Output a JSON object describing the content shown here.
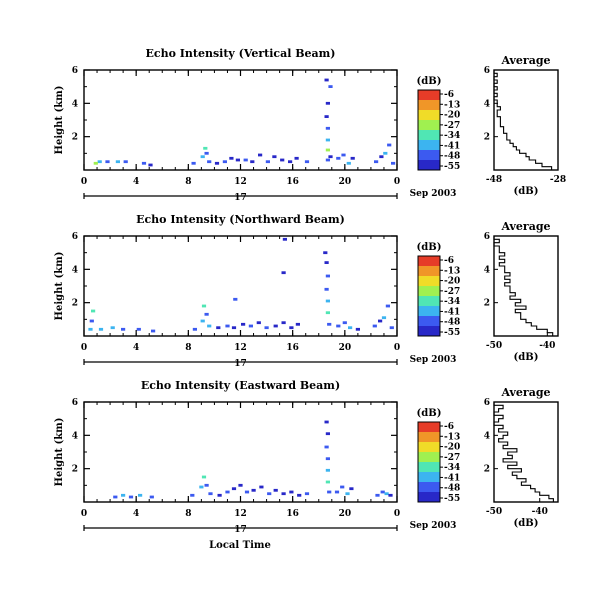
{
  "figure": {
    "x_axis_label": "Local Time",
    "date_label": "Sep 2003",
    "day_label": "17",
    "colorbar_unit": "(dB)",
    "colorbar_ticks": [
      "-6",
      "-13",
      "-20",
      "-27",
      "-34",
      "-41",
      "-48",
      "-55"
    ],
    "colors": [
      "#2828c8",
      "#3c5af0",
      "#3cb4f0",
      "#50e6b4",
      "#a0f050",
      "#f0dc28",
      "#f09628",
      "#e63c28"
    ]
  },
  "chart_data": [
    {
      "type": "heatmap",
      "title": "Echo Intensity (Vertical Beam)",
      "xlabel": "Local Time",
      "ylabel": "Height (km)",
      "xlim": [
        0,
        24
      ],
      "ylim": [
        0,
        6
      ],
      "xticks": [
        "0",
        "4",
        "8",
        "12",
        "16",
        "20",
        "0"
      ],
      "yticks": [
        "2",
        "4",
        "6"
      ],
      "colorbar": {
        "label": "(dB)",
        "range": [
          -55,
          -6
        ]
      },
      "cells": [
        [
          1.2,
          0.5,
          -42
        ],
        [
          1.8,
          0.5,
          -45
        ],
        [
          2.6,
          0.5,
          -38
        ],
        [
          3.2,
          0.5,
          -48
        ],
        [
          4.6,
          0.4,
          -46
        ],
        [
          5.1,
          0.3,
          -50
        ],
        [
          0.9,
          0.4,
          -30
        ],
        [
          8.4,
          0.4,
          -44
        ],
        [
          9.1,
          0.8,
          -40
        ],
        [
          9.3,
          1.3,
          -35
        ],
        [
          9.4,
          1.0,
          -48
        ],
        [
          9.6,
          0.5,
          -45
        ],
        [
          10.2,
          0.4,
          -50
        ],
        [
          10.8,
          0.5,
          -48
        ],
        [
          11.3,
          0.7,
          -50
        ],
        [
          11.8,
          0.6,
          -52
        ],
        [
          12.4,
          0.6,
          -47
        ],
        [
          12.9,
          0.5,
          -50
        ],
        [
          13.5,
          0.9,
          -52
        ],
        [
          14.1,
          0.5,
          -48
        ],
        [
          14.6,
          0.8,
          -50
        ],
        [
          15.2,
          0.6,
          -53
        ],
        [
          15.8,
          0.5,
          -50
        ],
        [
          16.3,
          0.7,
          -51
        ],
        [
          17.1,
          0.5,
          -44
        ],
        [
          18.6,
          5.4,
          -50
        ],
        [
          18.9,
          5.0,
          -48
        ],
        [
          18.7,
          4.0,
          -52
        ],
        [
          18.6,
          3.2,
          -50
        ],
        [
          18.7,
          2.5,
          -46
        ],
        [
          18.7,
          1.8,
          -40
        ],
        [
          18.7,
          1.2,
          -30
        ],
        [
          18.7,
          0.6,
          -45
        ],
        [
          18.9,
          0.8,
          -50
        ],
        [
          19.5,
          0.7,
          -48
        ],
        [
          19.9,
          0.9,
          -46
        ],
        [
          20.3,
          0.4,
          -42
        ],
        [
          20.6,
          0.7,
          -50
        ],
        [
          22.4,
          0.5,
          -45
        ],
        [
          22.8,
          0.8,
          -50
        ],
        [
          23.1,
          1.0,
          -42
        ],
        [
          23.4,
          1.5,
          -48
        ],
        [
          23.7,
          0.4,
          -44
        ]
      ],
      "average": {
        "xlim": [
          -48,
          -28
        ],
        "xticks": [
          "-48",
          "-28"
        ],
        "ylim": [
          0,
          6
        ],
        "yticks": [
          "2",
          "4",
          "6"
        ],
        "heights": [
          0.1,
          0.3,
          0.5,
          0.7,
          0.9,
          1.1,
          1.3,
          1.5,
          1.7,
          1.9,
          2.1,
          2.3,
          2.5,
          2.7,
          2.9,
          3.1,
          3.3,
          3.5,
          3.7,
          3.9,
          4.1,
          4.3,
          4.5,
          4.7,
          4.9,
          5.1,
          5.3,
          5.5,
          5.7,
          5.9
        ],
        "values": [
          -30,
          -33,
          -35,
          -37,
          -38,
          -40,
          -41,
          -42,
          -43,
          -44,
          -44,
          -45,
          -45,
          -46,
          -46,
          -46,
          -47,
          -47,
          -46,
          -47,
          -47,
          -48,
          -47,
          -48,
          -47,
          -48,
          -47,
          -48,
          -47,
          -48
        ]
      }
    },
    {
      "type": "heatmap",
      "title": "Echo Intensity (Northward Beam)",
      "xlabel": "Local Time",
      "ylabel": "Height (km)",
      "xlim": [
        0,
        24
      ],
      "ylim": [
        0,
        6
      ],
      "xticks": [
        "0",
        "4",
        "8",
        "12",
        "16",
        "20",
        "0"
      ],
      "yticks": [
        "2",
        "4",
        "6"
      ],
      "colorbar": {
        "label": "(dB)",
        "range": [
          -55,
          -6
        ]
      },
      "cells": [
        [
          0.5,
          0.4,
          -42
        ],
        [
          0.7,
          1.5,
          -35
        ],
        [
          0.6,
          0.9,
          -45
        ],
        [
          1.3,
          0.4,
          -40
        ],
        [
          2.2,
          0.5,
          -38
        ],
        [
          3.0,
          0.4,
          -44
        ],
        [
          4.2,
          0.4,
          -48
        ],
        [
          5.3,
          0.3,
          -46
        ],
        [
          8.5,
          0.4,
          -44
        ],
        [
          9.1,
          0.9,
          -40
        ],
        [
          9.2,
          1.8,
          -34
        ],
        [
          9.4,
          1.3,
          -48
        ],
        [
          9.6,
          0.6,
          -42
        ],
        [
          10.3,
          0.5,
          -50
        ],
        [
          11.6,
          2.2,
          -45
        ],
        [
          11.0,
          0.6,
          -48
        ],
        [
          11.5,
          0.5,
          -50
        ],
        [
          12.2,
          0.7,
          -52
        ],
        [
          12.8,
          0.6,
          -47
        ],
        [
          13.4,
          0.8,
          -52
        ],
        [
          14.0,
          0.5,
          -48
        ],
        [
          14.7,
          0.6,
          -50
        ],
        [
          15.3,
          0.8,
          -53
        ],
        [
          15.9,
          0.5,
          -50
        ],
        [
          16.4,
          0.7,
          -51
        ],
        [
          15.4,
          5.8,
          -50
        ],
        [
          15.3,
          3.8,
          -50
        ],
        [
          18.5,
          5.0,
          -50
        ],
        [
          18.6,
          4.4,
          -52
        ],
        [
          18.7,
          3.6,
          -48
        ],
        [
          18.6,
          2.8,
          -46
        ],
        [
          18.7,
          2.1,
          -40
        ],
        [
          18.7,
          1.4,
          -34
        ],
        [
          18.8,
          0.7,
          -45
        ],
        [
          19.5,
          0.6,
          -48
        ],
        [
          20.0,
          0.8,
          -46
        ],
        [
          20.4,
          0.5,
          -42
        ],
        [
          21.0,
          0.4,
          -50
        ],
        [
          22.3,
          0.6,
          -45
        ],
        [
          22.7,
          0.9,
          -50
        ],
        [
          23.0,
          1.1,
          -42
        ],
        [
          23.3,
          1.8,
          -48
        ],
        [
          23.6,
          0.5,
          -44
        ]
      ],
      "average": {
        "xlim": [
          -50,
          -38
        ],
        "xticks": [
          "-50",
          "-40"
        ],
        "ylim": [
          0,
          6
        ],
        "yticks": [
          "2",
          "4",
          "6"
        ],
        "heights": [
          0.1,
          0.3,
          0.5,
          0.7,
          0.9,
          1.1,
          1.3,
          1.5,
          1.7,
          1.9,
          2.1,
          2.3,
          2.5,
          2.7,
          2.9,
          3.1,
          3.3,
          3.5,
          3.7,
          3.9,
          4.1,
          4.3,
          4.5,
          4.7,
          4.9,
          5.1,
          5.3,
          5.5,
          5.7,
          5.9
        ],
        "values": [
          -39,
          -40,
          -42,
          -43,
          -44,
          -45,
          -45,
          -46,
          -44,
          -46,
          -45,
          -47,
          -46,
          -47,
          -47,
          -48,
          -47,
          -48,
          -47,
          -48,
          -48,
          -49,
          -48,
          -49,
          -48,
          -49,
          -49,
          -50,
          -49,
          -50
        ]
      }
    },
    {
      "type": "heatmap",
      "title": "Echo Intensity (Eastward Beam)",
      "xlabel": "Local Time",
      "ylabel": "Height (km)",
      "xlim": [
        0,
        24
      ],
      "ylim": [
        0,
        6
      ],
      "xticks": [
        "0",
        "4",
        "8",
        "12",
        "16",
        "20",
        "0"
      ],
      "yticks": [
        "2",
        "4",
        "6"
      ],
      "colorbar": {
        "label": "(dB)",
        "range": [
          -55,
          -6
        ]
      },
      "cells": [
        [
          2.4,
          0.3,
          -45
        ],
        [
          3.0,
          0.4,
          -40
        ],
        [
          3.6,
          0.3,
          -48
        ],
        [
          4.3,
          0.4,
          -42
        ],
        [
          5.2,
          0.3,
          -46
        ],
        [
          8.3,
          0.4,
          -44
        ],
        [
          9.0,
          0.9,
          -40
        ],
        [
          9.2,
          1.5,
          -36
        ],
        [
          9.4,
          1.0,
          -48
        ],
        [
          9.7,
          0.5,
          -44
        ],
        [
          10.4,
          0.4,
          -50
        ],
        [
          11.0,
          0.6,
          -48
        ],
        [
          11.5,
          0.8,
          -50
        ],
        [
          12.0,
          1.0,
          -52
        ],
        [
          12.5,
          0.6,
          -47
        ],
        [
          13.0,
          0.7,
          -50
        ],
        [
          13.6,
          0.9,
          -52
        ],
        [
          14.2,
          0.5,
          -48
        ],
        [
          14.7,
          0.7,
          -50
        ],
        [
          15.3,
          0.5,
          -53
        ],
        [
          15.9,
          0.6,
          -50
        ],
        [
          16.5,
          0.4,
          -51
        ],
        [
          17.1,
          0.5,
          -44
        ],
        [
          18.6,
          4.8,
          -50
        ],
        [
          18.7,
          4.1,
          -52
        ],
        [
          18.6,
          3.3,
          -48
        ],
        [
          18.7,
          2.6,
          -46
        ],
        [
          18.7,
          1.9,
          -40
        ],
        [
          18.7,
          1.2,
          -32
        ],
        [
          18.8,
          0.6,
          -45
        ],
        [
          19.4,
          0.6,
          -48
        ],
        [
          19.8,
          0.9,
          -46
        ],
        [
          20.2,
          0.5,
          -42
        ],
        [
          20.5,
          0.8,
          -50
        ],
        [
          22.5,
          0.4,
          -45
        ],
        [
          22.9,
          0.6,
          -48
        ],
        [
          23.2,
          0.5,
          -42
        ],
        [
          23.5,
          0.4,
          -50
        ]
      ],
      "average": {
        "xlim": [
          -50,
          -36
        ],
        "xticks": [
          "-50",
          "-40"
        ],
        "ylim": [
          0,
          6
        ],
        "yticks": [
          "2",
          "4",
          "6"
        ],
        "heights": [
          0.1,
          0.3,
          0.5,
          0.7,
          0.9,
          1.1,
          1.3,
          1.5,
          1.7,
          1.9,
          2.1,
          2.3,
          2.5,
          2.7,
          2.9,
          3.1,
          3.3,
          3.5,
          3.7,
          3.9,
          4.1,
          4.3,
          4.5,
          4.7,
          4.9,
          5.1,
          5.3,
          5.5,
          5.7,
          5.9
        ],
        "values": [
          -37,
          -38,
          -40,
          -41,
          -42,
          -44,
          -43,
          -45,
          -46,
          -44,
          -47,
          -45,
          -48,
          -46,
          -47,
          -45,
          -48,
          -47,
          -49,
          -48,
          -47,
          -49,
          -48,
          -50,
          -49,
          -48,
          -50,
          -49,
          -48,
          -50
        ]
      }
    }
  ]
}
